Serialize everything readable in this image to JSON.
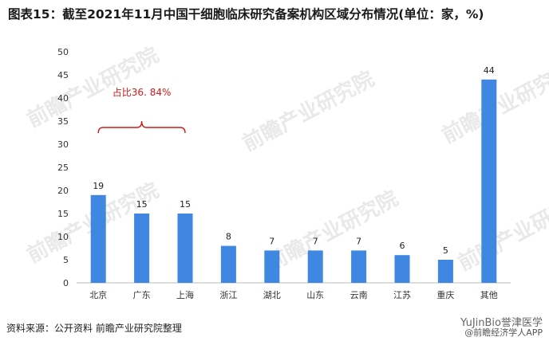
{
  "title": "图表15：截至2021年11月中国干细胞临床研究备案机构区域分布情况(单位：家，%)",
  "source": "资料来源：公开资料 前瞻产业研究院整理",
  "brand": {
    "line1": "YuJinBio誉津医学",
    "line2": "@前瞻经济学人APP"
  },
  "watermark": "前瞻产业研究院",
  "colors": {
    "bar": "#3f87e0",
    "annotation": "#d11a1a"
  },
  "chart_data": {
    "type": "bar",
    "categories": [
      "北京",
      "广东",
      "上海",
      "浙江",
      "湖北",
      "山东",
      "云南",
      "江苏",
      "重庆",
      "其他"
    ],
    "values": [
      19,
      15,
      15,
      8,
      7,
      7,
      7,
      6,
      5,
      44
    ],
    "ylim": [
      0,
      50
    ],
    "yticks": [
      0,
      5,
      10,
      15,
      20,
      25,
      30,
      35,
      40,
      45,
      50
    ],
    "grid": false,
    "annotation": {
      "text": "占比36. 84%",
      "span": [
        "北京",
        "上海"
      ]
    }
  }
}
